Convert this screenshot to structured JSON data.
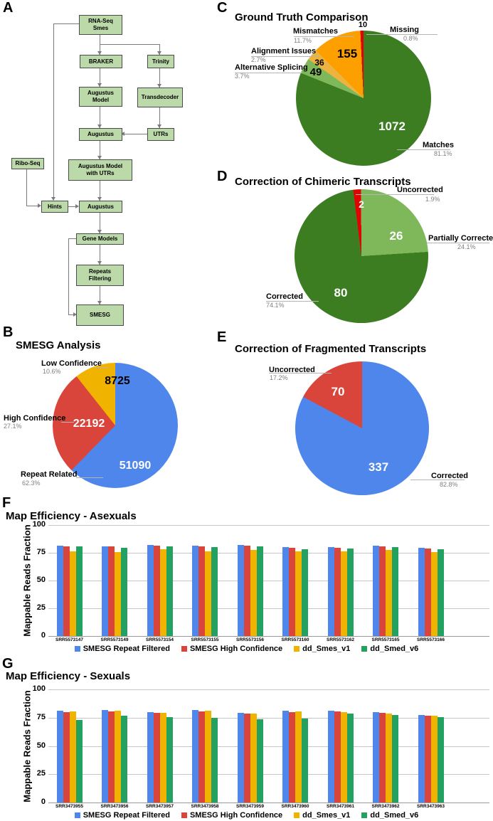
{
  "figure": {
    "panel_letters": [
      "A",
      "B",
      "C",
      "D",
      "E",
      "F",
      "G"
    ]
  },
  "colors": {
    "blue": "#4e86ec",
    "red": "#d9453b",
    "yellow": "#f0b400",
    "bar_green": "#23a161",
    "dark_green": "#3c7d22",
    "light_green": "#7fb85b",
    "orange": "#fe9f00",
    "amber": "#eeb33f",
    "bright_red": "#e30202",
    "node_fill": "#bcd9aa"
  },
  "diagram": {
    "nodes": {
      "rna_seq": "RNA-Seq\nSmes",
      "braker": "BRAKER",
      "trinity": "Trinity",
      "augustus_model": "Augustus\nModel",
      "transdecoder": "Transdecoder",
      "augustus1": "Augustus",
      "utrs": "UTRs",
      "ribo_seq": "Ribo-Seq",
      "augustus_model_utrs": "Augustus Model\nwith UTRs",
      "hints": "Hints",
      "augustus2": "Augustus",
      "gene_models": "Gene Models",
      "repeats_filtering": "Repeats\nFiltering",
      "smesg": "SMESG"
    }
  },
  "chart_data": [
    {
      "id": "B",
      "type": "pie",
      "title": "SMESG Analysis",
      "rotation_deg": 0,
      "labels": [
        "Repeat Related",
        "High Confidence",
        "Low Confidence"
      ],
      "values": [
        51090,
        22192,
        8725
      ],
      "pcts": [
        "62.3%",
        "27.1%",
        "10.6%"
      ],
      "colors": [
        "#4e86ec",
        "#d9453b",
        "#f0b400"
      ]
    },
    {
      "id": "C",
      "type": "pie",
      "title": "Ground Truth Comparison",
      "rotation_deg": 0,
      "labels": [
        "Matches",
        "Alternative Splicing",
        "Alignment Issues",
        "Mismatches",
        "Missing"
      ],
      "values": [
        1072,
        49,
        36,
        155,
        10
      ],
      "pcts": [
        "81.1%",
        "3.7%",
        "2.7%",
        "11.7%",
        "0.8%"
      ],
      "colors": [
        "#3c7d22",
        "#7fb85b",
        "#eeb33f",
        "#fe9f00",
        "#e30202"
      ]
    },
    {
      "id": "D",
      "type": "pie",
      "title": "Correction of Chimeric Transcripts",
      "rotation_deg": -7,
      "labels": [
        "Uncorrected",
        "Partially Corrected",
        "Corrected"
      ],
      "values": [
        2,
        26,
        80
      ],
      "pcts": [
        "1.9%",
        "24.1%",
        "74.1%"
      ],
      "colors": [
        "#e30202",
        "#7fb85b",
        "#3c7d22"
      ]
    },
    {
      "id": "E",
      "type": "pie",
      "title": "Correction of Fragmented Transcripts",
      "rotation_deg": 0,
      "labels": [
        "Corrected",
        "Uncorrected"
      ],
      "values": [
        337,
        70
      ],
      "pcts": [
        "82.8%",
        "17.2%"
      ],
      "colors": [
        "#4e86ec",
        "#d9453b"
      ]
    },
    {
      "id": "F",
      "type": "bar",
      "title": "Map Efficiency - Asexuals",
      "ylabel": "Mappable Reads Fraction",
      "ylim": [
        0,
        100
      ],
      "yticks": [
        0,
        25,
        50,
        75,
        100
      ],
      "categories": [
        "SRR5573147",
        "SRR5573149",
        "SRR5573154",
        "SRR5573155",
        "SRR5573156",
        "SRR5573160",
        "SRR5573162",
        "SRR5573165",
        "SRR5573166"
      ],
      "series": [
        {
          "name": "SMESG Repeat Filtered",
          "color": "#4e86ec",
          "values": [
            81.5,
            81,
            82,
            81.5,
            82,
            80,
            80,
            81.5,
            79.5
          ]
        },
        {
          "name": "SMESG High Confidence",
          "color": "#d9453b",
          "values": [
            81,
            80.5,
            81.5,
            80.5,
            81.5,
            79.5,
            79.5,
            81,
            79
          ]
        },
        {
          "name": "dd_Smes_v1",
          "color": "#f0b400",
          "values": [
            76.5,
            75.5,
            78,
            76.5,
            77.5,
            76,
            76.5,
            77.5,
            75.5
          ]
        },
        {
          "name": "dd_Smed_v6",
          "color": "#23a161",
          "values": [
            80.5,
            79.5,
            81,
            80,
            81,
            78.5,
            79,
            80,
            78
          ]
        }
      ]
    },
    {
      "id": "G",
      "type": "bar",
      "title": "Map Efficiency - Sexuals",
      "ylabel": "Mappable Reads Fraction",
      "ylim": [
        0,
        100
      ],
      "yticks": [
        0,
        25,
        50,
        75,
        100
      ],
      "categories": [
        "SRR3473955",
        "SRR3473956",
        "SRR3473957",
        "SRR3473958",
        "SRR3473959",
        "SRR3473960",
        "SRR3473961",
        "SRR3473962",
        "SRR3473963"
      ],
      "series": [
        {
          "name": "SMESG Repeat Filtered",
          "color": "#4e86ec",
          "values": [
            81,
            81.5,
            80,
            81.5,
            79.5,
            81,
            81,
            80,
            77.5
          ]
        },
        {
          "name": "SMESG High Confidence",
          "color": "#d9453b",
          "values": [
            80,
            80.5,
            79.5,
            80.5,
            78.5,
            80,
            80.5,
            79.5,
            77
          ]
        },
        {
          "name": "dd_Smes_v1",
          "color": "#f0b400",
          "values": [
            80.5,
            81,
            79.5,
            81,
            78.5,
            80.5,
            80,
            78.5,
            76.5
          ]
        },
        {
          "name": "dd_Smed_v6",
          "color": "#23a161",
          "values": [
            73,
            77,
            75.5,
            75,
            73.5,
            74.5,
            78.5,
            77.5,
            75.5
          ]
        }
      ]
    }
  ]
}
